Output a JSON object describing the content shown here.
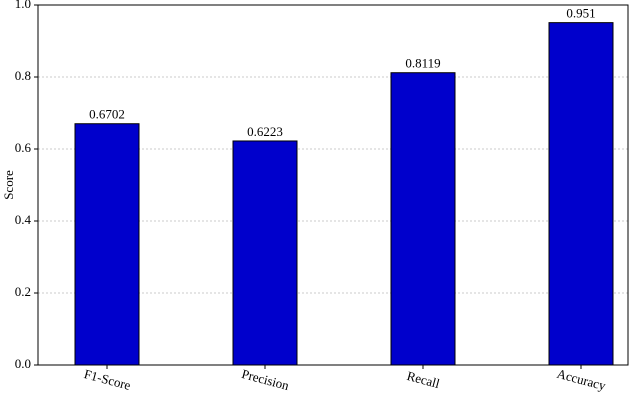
{
  "chart_data": {
    "type": "bar",
    "y_label": "Score",
    "categories": [
      "F1-Score",
      "Precision",
      "Recall",
      "Accuracy"
    ],
    "values": [
      0.6702,
      0.6223,
      0.8119,
      0.951
    ],
    "color": "#0000cc",
    "ylim": [
      0,
      1.0
    ],
    "yticks": [
      {
        "value": 0,
        "label": "0.0"
      },
      0.2,
      0.4,
      0.6,
      0.8,
      {
        "value": 1.0,
        "label": "1.0"
      }
    ],
    "grid": true
  }
}
